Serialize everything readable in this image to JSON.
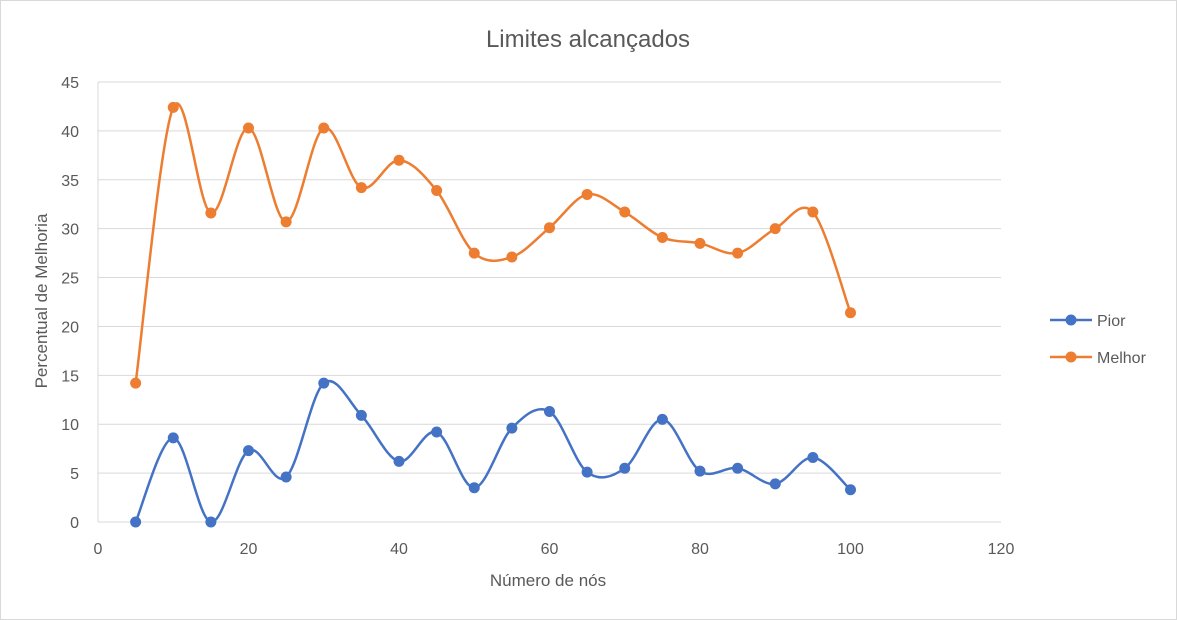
{
  "chart_data": {
    "type": "line",
    "smooth": true,
    "markers": true,
    "title": "Limites alcançados",
    "xlabel": "Número de nós",
    "ylabel": "Percentual de Melhoria",
    "xlim": [
      0,
      120
    ],
    "ylim": [
      0,
      45
    ],
    "x_ticks": [
      0,
      20,
      40,
      60,
      80,
      100,
      120
    ],
    "y_ticks": [
      0,
      5,
      10,
      15,
      20,
      25,
      30,
      35,
      40,
      45
    ],
    "grid": "horizontal",
    "legend_position": "right",
    "x": [
      5,
      10,
      15,
      20,
      25,
      30,
      35,
      40,
      45,
      50,
      55,
      60,
      65,
      70,
      75,
      80,
      85,
      90,
      95,
      100
    ],
    "series": [
      {
        "name": "Pior",
        "color": "#4472c4",
        "values": [
          0,
          8.6,
          0,
          7.3,
          4.6,
          14.2,
          10.9,
          6.2,
          9.2,
          3.5,
          9.6,
          11.3,
          5.1,
          5.5,
          10.5,
          5.2,
          5.5,
          3.9,
          6.6,
          3.3
        ]
      },
      {
        "name": "Melhor",
        "color": "#ed7d31",
        "values": [
          14.2,
          42.4,
          31.6,
          40.3,
          30.7,
          40.3,
          34.2,
          37.0,
          33.9,
          27.5,
          27.1,
          30.1,
          33.5,
          31.7,
          29.1,
          28.5,
          27.5,
          30.0,
          31.7,
          21.4
        ]
      }
    ]
  }
}
